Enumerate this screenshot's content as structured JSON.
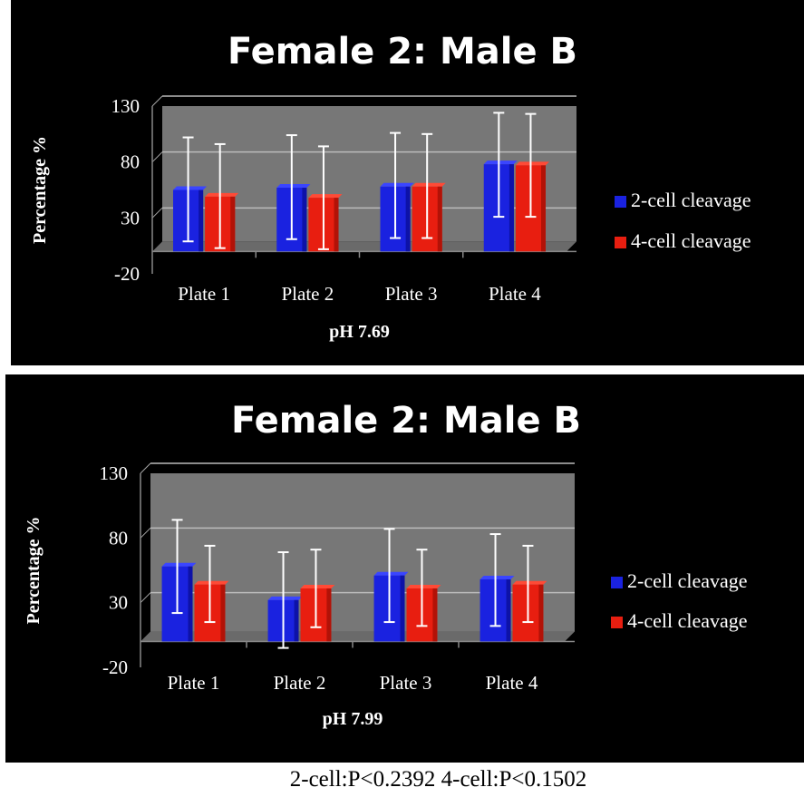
{
  "chart_data": [
    {
      "type": "bar",
      "title": "Female 2: Male B",
      "xlabel": "pH 7.69",
      "ylabel": "Percentage %",
      "ylim": [
        -20,
        130
      ],
      "yticks": [
        "130",
        "80",
        "30",
        "-20"
      ],
      "categories": [
        "Plate 1",
        "Plate 2",
        "Plate 3",
        "Plate 4"
      ],
      "grid": true,
      "legend_position": "right",
      "series": [
        {
          "name": "2-cell cleavage",
          "color": "#1a22e0",
          "values": [
            55,
            57,
            58,
            78
          ],
          "err_low": [
            9,
            11,
            12,
            31
          ],
          "err_high": [
            102,
            104,
            106,
            124
          ]
        },
        {
          "name": "4-cell cleavage",
          "color": "#e81e10",
          "values": [
            49,
            48,
            58,
            77
          ],
          "err_low": [
            3,
            2,
            12,
            31
          ],
          "err_high": [
            96,
            94,
            105,
            123
          ]
        }
      ]
    },
    {
      "type": "bar",
      "title": "Female 2: Male B",
      "xlabel": "pH 7.99",
      "ylabel": "Percentage %",
      "ylim": [
        -20,
        130
      ],
      "yticks": [
        "130",
        "80",
        "30",
        "-20"
      ],
      "categories": [
        "Plate 1",
        "Plate 2",
        "Plate 3",
        "Plate 4"
      ],
      "grid": true,
      "legend_position": "right",
      "series": [
        {
          "name": "2-cell cleavage",
          "color": "#1a22e0",
          "values": [
            58,
            32,
            51,
            48
          ],
          "err_low": [
            22,
            -5,
            15,
            12
          ],
          "err_high": [
            94,
            69,
            87,
            83
          ]
        },
        {
          "name": "4-cell cleavage",
          "color": "#e81e10",
          "values": [
            44,
            41,
            41,
            44
          ],
          "err_low": [
            15,
            11,
            12,
            15
          ],
          "err_high": [
            74,
            71,
            71,
            74
          ]
        }
      ]
    }
  ],
  "footer": {
    "text": "2-cell:P<0.2392   4-cell:P<0.1502"
  }
}
